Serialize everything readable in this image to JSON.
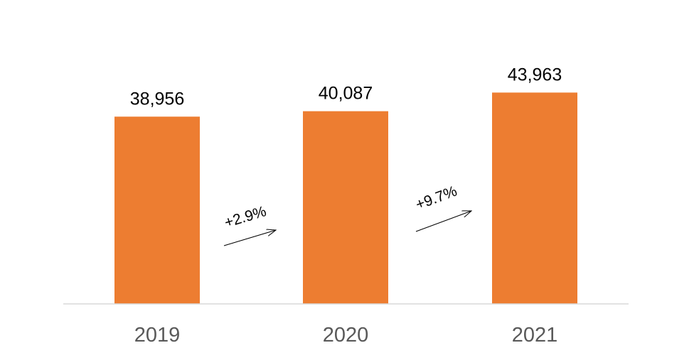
{
  "chart_data": {
    "type": "bar",
    "categories": [
      "2019",
      "2020",
      "2021"
    ],
    "values": [
      38956,
      40087,
      43963
    ],
    "value_labels": [
      "38,956",
      "40,087",
      "43,963"
    ],
    "annotations": [
      {
        "from": "2019",
        "to": "2020",
        "text": "+2.9%"
      },
      {
        "from": "2020",
        "to": "2021",
        "text": "+9.7%"
      }
    ],
    "bar_color": "#ED7D31",
    "axis_color": "#D9D9D9",
    "tick_label_color": "#595959",
    "grid": false,
    "legend": "none"
  }
}
